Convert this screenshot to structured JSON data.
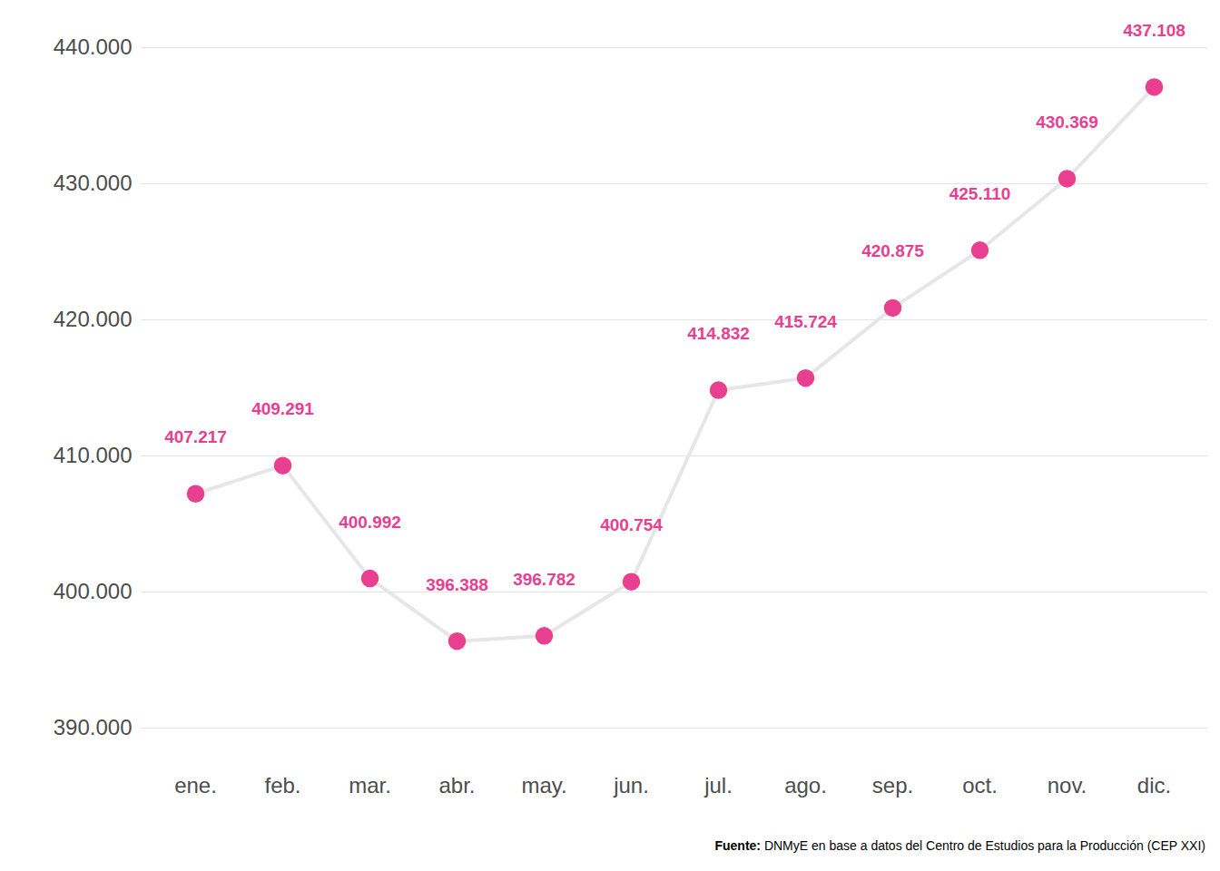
{
  "chart_data": {
    "type": "line",
    "categories": [
      "ene.",
      "feb.",
      "mar.",
      "abr.",
      "may.",
      "jun.",
      "jul.",
      "ago.",
      "sep.",
      "oct.",
      "nov.",
      "dic."
    ],
    "values": [
      407217,
      409291,
      400992,
      396388,
      396782,
      400754,
      414832,
      415724,
      420875,
      425110,
      430369,
      437108
    ],
    "value_labels": [
      "407.217",
      "409.291",
      "400.992",
      "396.388",
      "396.782",
      "400.754",
      "414.832",
      "415.724",
      "420.875",
      "425.110",
      "430.369",
      "437.108"
    ],
    "data_labels": true,
    "color": "#e8408f",
    "line_color": "#e6e6e6",
    "marker": "circle",
    "ylim": [
      390000,
      440000
    ],
    "yticks": [
      {
        "value": 390000,
        "label": "390.000"
      },
      {
        "value": 400000,
        "label": "400.000"
      },
      {
        "value": 410000,
        "label": "410.000"
      },
      {
        "value": 420000,
        "label": "420.000"
      },
      {
        "value": 430000,
        "label": "430.000"
      },
      {
        "value": 440000,
        "label": "440.000"
      }
    ],
    "grid": true,
    "caption": "Fuente: DNMyE en base a datos del Centro de Estudios para la Producción (CEP XXI)"
  }
}
